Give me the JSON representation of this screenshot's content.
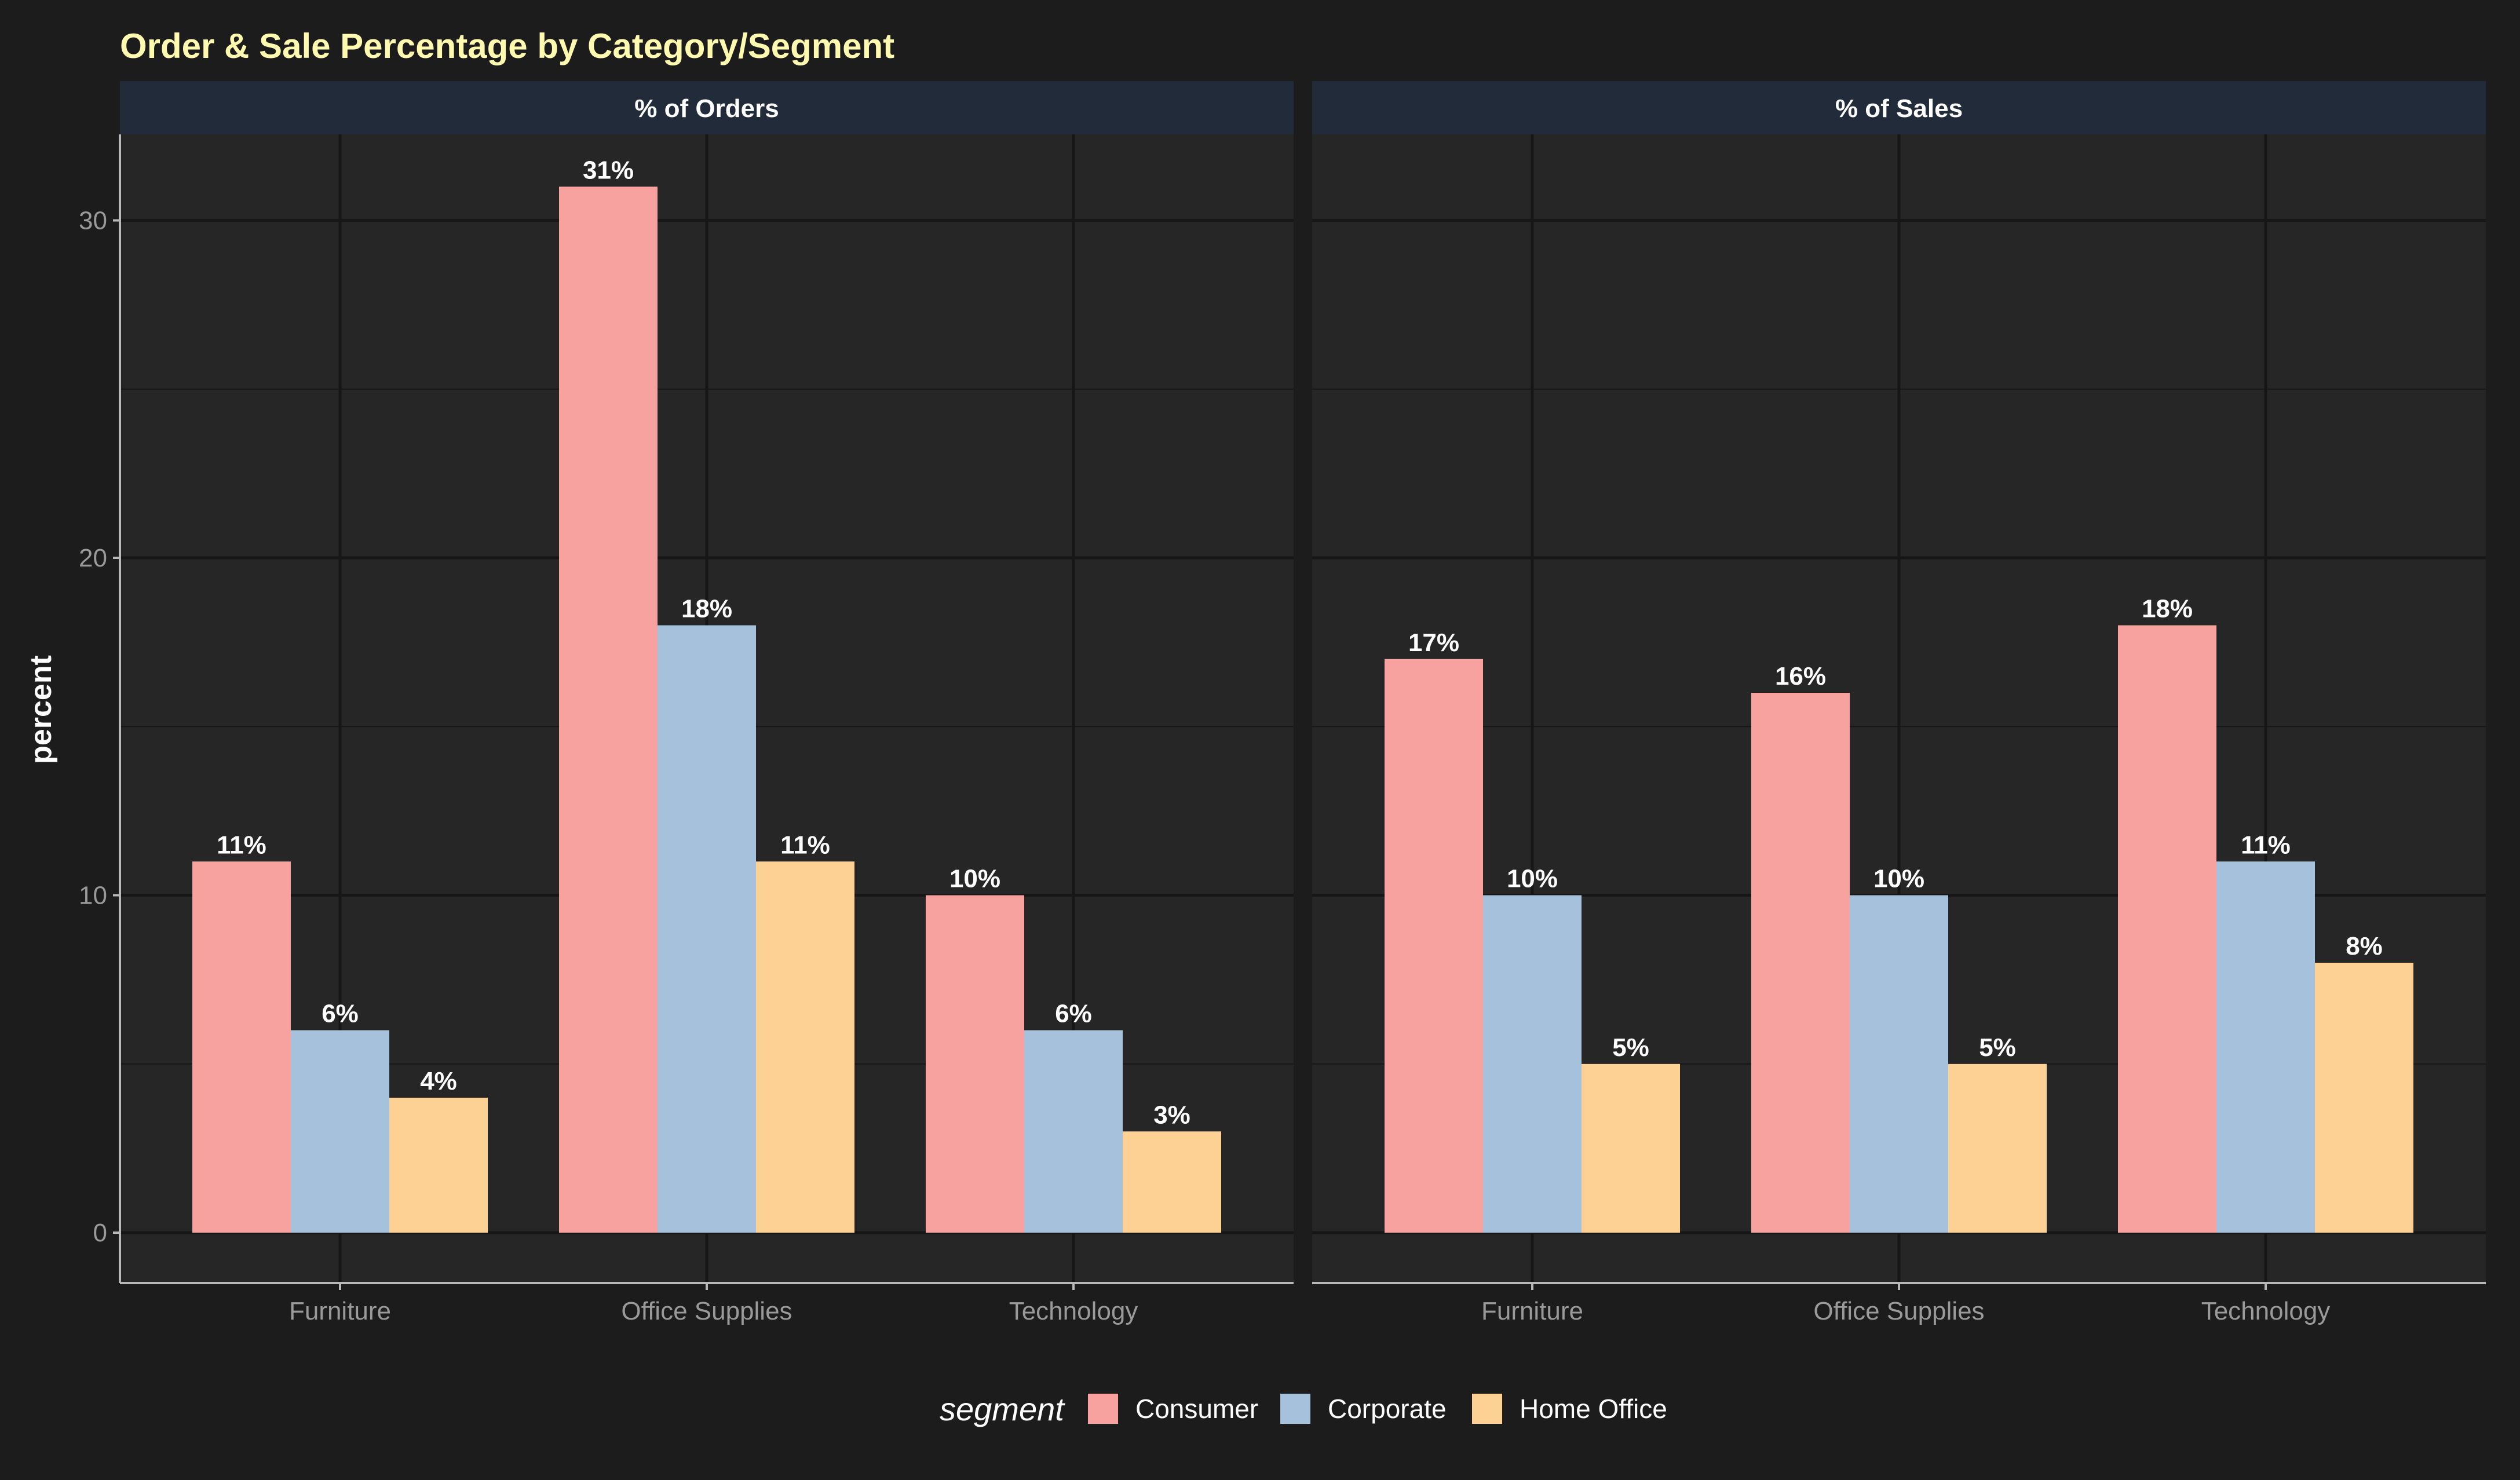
{
  "colors": {
    "background": "#1c1c1c",
    "panel": "#262626",
    "strip": "#212b39",
    "grid": "#161616",
    "axis_line": "#b8b8b8",
    "tick_text": "#9a9a9a",
    "title": "#fffab0",
    "label_text": "#ffffff"
  },
  "chart_data": {
    "type": "bar",
    "title": "Order & Sale Percentage by Category/Segment",
    "ylabel": "percent",
    "xlabel": "",
    "ylim": [
      0,
      32
    ],
    "yticks": [
      0,
      10,
      20,
      30
    ],
    "categories": [
      "Furniture",
      "Office Supplies",
      "Technology"
    ],
    "grid": true,
    "legend": {
      "title": "segment",
      "placement": "bottom",
      "entries": [
        "Consumer",
        "Corporate",
        "Home Office"
      ]
    },
    "series_colors": {
      "Consumer": "#f7a29e",
      "Corporate": "#a6c1dc",
      "Home Office": "#fdd193"
    },
    "facets": [
      {
        "label": "% of Orders",
        "series": [
          {
            "name": "Consumer",
            "values": [
              11,
              31,
              10
            ],
            "labels": [
              "11%",
              "31%",
              "10%"
            ]
          },
          {
            "name": "Corporate",
            "values": [
              6,
              18,
              6
            ],
            "labels": [
              "6%",
              "18%",
              "6%"
            ]
          },
          {
            "name": "Home Office",
            "values": [
              4,
              11,
              3
            ],
            "labels": [
              "4%",
              "11%",
              "3%"
            ]
          }
        ]
      },
      {
        "label": "% of Sales",
        "series": [
          {
            "name": "Consumer",
            "values": [
              17,
              16,
              18
            ],
            "labels": [
              "17%",
              "16%",
              "18%"
            ]
          },
          {
            "name": "Corporate",
            "values": [
              10,
              10,
              11
            ],
            "labels": [
              "10%",
              "10%",
              "11%"
            ]
          },
          {
            "name": "Home Office",
            "values": [
              5,
              5,
              8
            ],
            "labels": [
              "5%",
              "5%",
              "8%"
            ]
          }
        ]
      }
    ]
  }
}
